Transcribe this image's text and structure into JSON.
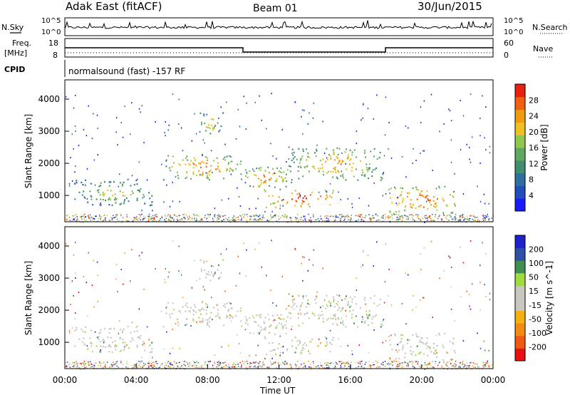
{
  "header": {
    "station": "Adak East (fitACF)",
    "beam": "Beam 01",
    "date": "30/Jun/2015"
  },
  "panels": {
    "nsky_label": "N.Sky",
    "nsearch_label": "N.Search",
    "freq_label_1": "Freq.",
    "freq_label_2": "[MHz]",
    "cpid_label": "CPID",
    "nave_label": "Nave",
    "left_ticks": [
      "10^5",
      "10^0",
      "18",
      "8"
    ],
    "right_ticks": [
      "10^5",
      "10^0",
      "60",
      "0"
    ],
    "cpid_text": "normalsound (fast) -157 RF"
  },
  "x_axis": {
    "label": "Time UT",
    "ticks": [
      "00:00",
      "04:00",
      "08:00",
      "12:00",
      "16:00",
      "20:00",
      "00:00"
    ]
  },
  "colors": {
    "power": [
      "#1a1aff",
      "#1f4fbf",
      "#2f6f9f",
      "#3f8f6f",
      "#5fa85f",
      "#8fc84f",
      "#f0c020",
      "#f09a10",
      "#f06010",
      "#e82010"
    ],
    "velocity": [
      "#e81010",
      "#f05a10",
      "#f58a10",
      "#f5b010",
      "#c8c8c0",
      "#c8c8c0",
      "#9fdc40",
      "#3f8f4f",
      "#2f4fa8",
      "#2020d0"
    ]
  },
  "chart_data": [
    {
      "type": "heatmap",
      "title": "Power",
      "ylabel": "Slant Range [km]",
      "xlabel": "",
      "colorbar_label": "Power [dB]",
      "colorbar_ticks": [
        "28",
        "24",
        "20",
        "16",
        "12",
        "8",
        "4"
      ],
      "y_ticks": [
        "1000",
        "2000",
        "3000",
        "4000"
      ],
      "x_range_hours": [
        0,
        24
      ],
      "y_range_km": [
        180,
        4600
      ],
      "echo_regions": [
        {
          "t0": 5.5,
          "t1": 10.0,
          "r0": 1500,
          "r1": 2300,
          "level": 0.55
        },
        {
          "t0": 10.0,
          "t1": 12.5,
          "r0": 1250,
          "r1": 1900,
          "level": 0.6
        },
        {
          "t0": 11.0,
          "t1": 15.3,
          "r0": 650,
          "r1": 1200,
          "level": 0.8
        },
        {
          "t0": 12.5,
          "t1": 17.8,
          "r0": 1500,
          "r1": 2500,
          "level": 0.45
        },
        {
          "t0": 18.0,
          "t1": 22.0,
          "r0": 450,
          "r1": 1300,
          "level": 0.7
        },
        {
          "t0": 7.5,
          "t1": 8.9,
          "r0": 2900,
          "r1": 3600,
          "level": 0.35
        },
        {
          "t0": 0.5,
          "t1": 5.0,
          "r0": 700,
          "r1": 1500,
          "level": 0.2
        }
      ]
    },
    {
      "type": "heatmap",
      "title": "Velocity",
      "ylabel": "Slant Range [km]",
      "xlabel": "Time UT",
      "colorbar_label": "Velocity [m s^-1]",
      "colorbar_ticks": [
        "200",
        "100",
        "50",
        "15",
        "-15",
        "-50",
        "-100",
        "-200"
      ],
      "y_ticks": [
        "1000",
        "2000",
        "3000",
        "4000"
      ],
      "x_range_hours": [
        0,
        24
      ],
      "y_range_km": [
        180,
        4600
      ]
    }
  ]
}
